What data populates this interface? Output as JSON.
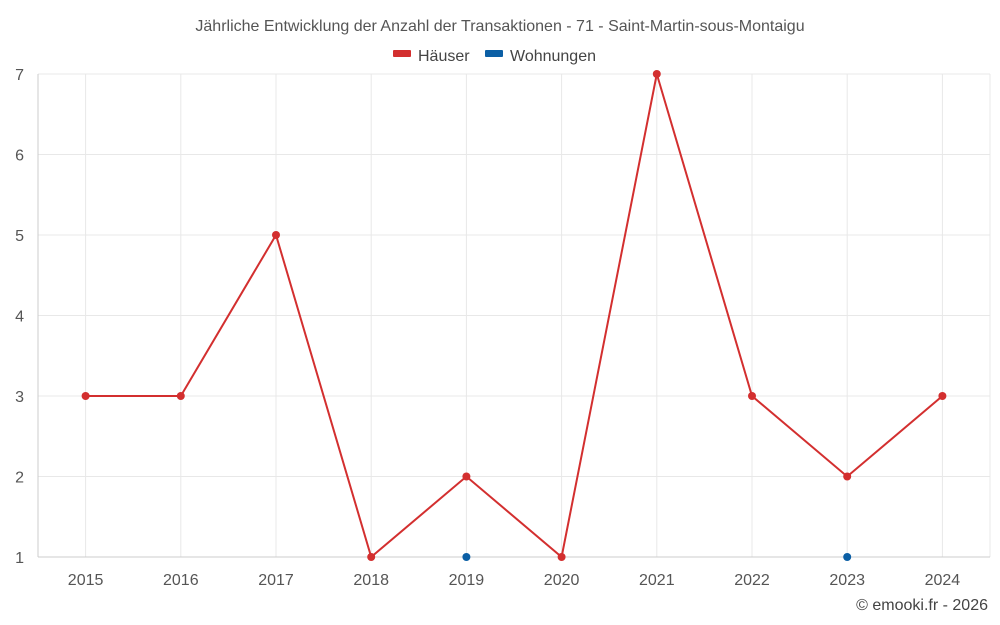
{
  "chart_data": {
    "type": "line",
    "title": "Jährliche Entwicklung der Anzahl der Transaktionen - 71 - Saint-Martin-sous-Montaigu",
    "categories": [
      "2015",
      "2016",
      "2017",
      "2018",
      "2019",
      "2020",
      "2021",
      "2022",
      "2023",
      "2024"
    ],
    "series": [
      {
        "name": "Häuser",
        "color": "#d32f2f",
        "values": [
          3,
          3,
          5,
          1,
          2,
          1,
          7,
          3,
          2,
          3
        ]
      },
      {
        "name": "Wohnungen",
        "color": "#0b5fa5",
        "values": [
          null,
          null,
          null,
          null,
          1,
          null,
          null,
          null,
          1,
          null
        ]
      }
    ],
    "ylim": [
      1,
      7
    ],
    "yticks": [
      1,
      2,
      3,
      4,
      5,
      6,
      7
    ],
    "grid": true,
    "legend_position": "top-center",
    "xlabel": "",
    "ylabel": ""
  },
  "credit": "© emooki.fr - 2026"
}
